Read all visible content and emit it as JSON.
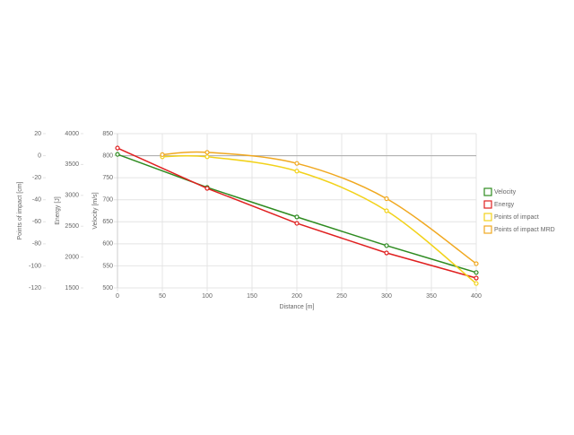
{
  "chart_data": {
    "type": "line",
    "xlabel": "Distance [m]",
    "ylabel": "Velocity [m/s]",
    "y2label": "Energy [J]",
    "y3label": "Points of impact [cm]",
    "xlim": [
      0,
      400
    ],
    "xticks": [
      0,
      50,
      100,
      150,
      200,
      250,
      300,
      350,
      400
    ],
    "ylim": [
      500,
      850
    ],
    "yticks": [
      500,
      550,
      600,
      650,
      700,
      750,
      800,
      850
    ],
    "y2lim": [
      1500,
      4000
    ],
    "y2ticks": [
      1500,
      2000,
      2500,
      3000,
      3500,
      4000
    ],
    "y3lim": [
      -120,
      20
    ],
    "y3ticks": [
      20,
      0,
      -20,
      -40,
      -60,
      -80,
      -100,
      -120
    ],
    "grid": true,
    "legend": "right",
    "series": [
      {
        "name": "Velocity",
        "color": "#2e8b20",
        "axis": "y",
        "smooth": false,
        "x": [
          0,
          100,
          200,
          300,
          400
        ],
        "values": [
          803,
          728,
          661,
          596,
          535
        ]
      },
      {
        "name": "Energy",
        "color": "#e02020",
        "axis": "y2",
        "smooth": false,
        "x": [
          0,
          100,
          200,
          300,
          400
        ],
        "values": [
          3767,
          3113,
          2547,
          2067,
          1660
        ]
      },
      {
        "name": "Points of impact",
        "color": "#f2d21a",
        "axis": "y3",
        "smooth": true,
        "x": [
          50,
          100,
          200,
          300,
          400
        ],
        "values": [
          -1,
          -1,
          -14,
          -50,
          -116
        ]
      },
      {
        "name": "Points of impact MRD",
        "color": "#f0a820",
        "axis": "y3",
        "smooth": true,
        "x": [
          50,
          100,
          200,
          300,
          400
        ],
        "values": [
          1,
          3,
          -7,
          -39,
          -98
        ]
      }
    ]
  }
}
